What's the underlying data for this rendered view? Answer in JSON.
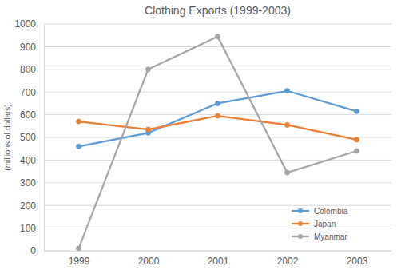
{
  "chart_data": {
    "type": "line",
    "title": "Clothing Exports (1999-2003)",
    "y_label": "(millions of dollars)",
    "categories": [
      "1999",
      "2000",
      "2001",
      "2002",
      "2003"
    ],
    "series": [
      {
        "name": "Colombia",
        "color": "#5b9bd5",
        "marker": "circle",
        "values": [
          460,
          520,
          650,
          705,
          615
        ]
      },
      {
        "name": "Japan",
        "color": "#ed7d31",
        "marker": "circle",
        "values": [
          570,
          535,
          595,
          555,
          490
        ]
      },
      {
        "name": "Myanmar",
        "color": "#a5a5a5",
        "marker": "circle",
        "values": [
          10,
          800,
          945,
          345,
          440
        ]
      }
    ],
    "ylim": [
      0,
      1000
    ],
    "yticks": [
      0,
      100,
      200,
      300,
      400,
      500,
      600,
      700,
      800,
      900,
      1000
    ],
    "grid": true,
    "legend": "lower right"
  }
}
